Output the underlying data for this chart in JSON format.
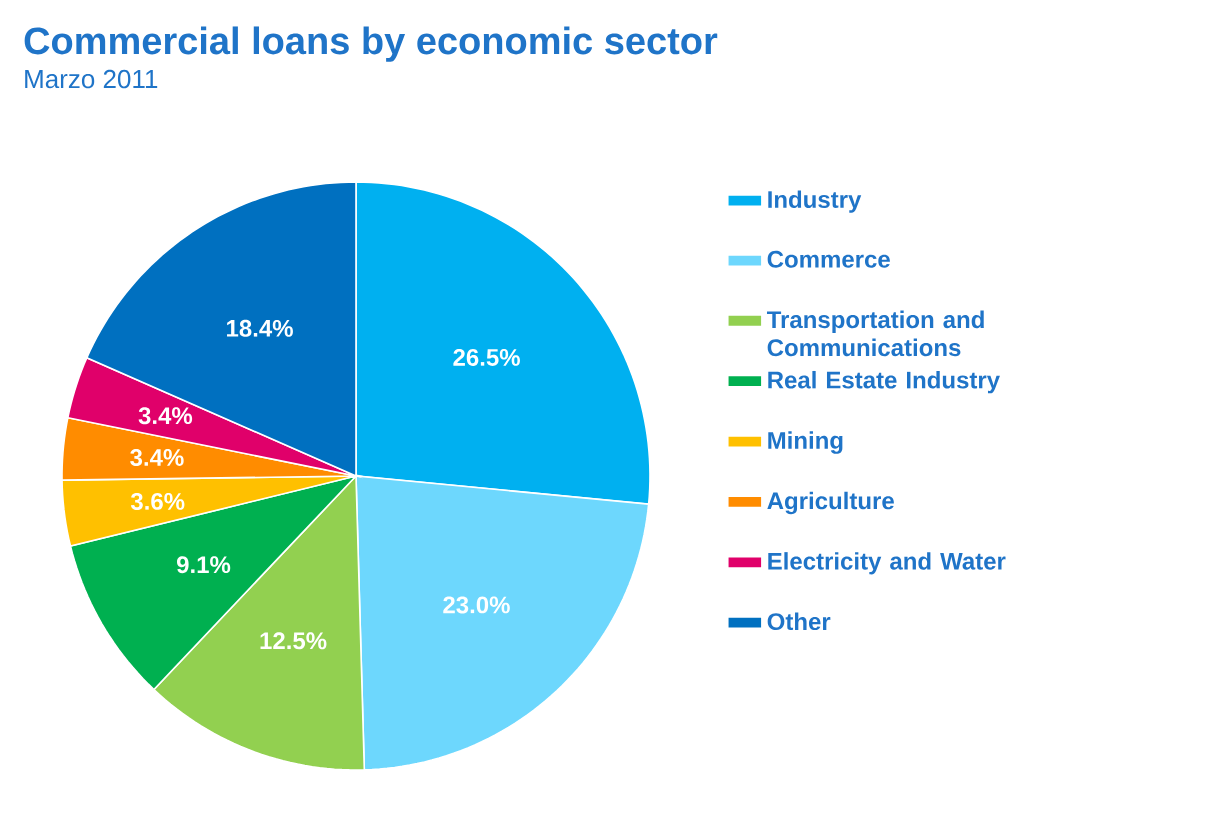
{
  "chart_data": {
    "type": "pie",
    "title": "Commercial loans by economic sector",
    "subtitle": "Marzo 2011",
    "categories": [
      "Industry",
      "Commerce",
      "Transportation and Communications",
      "Real Estate Industry",
      "Mining",
      "Agriculture",
      "Electricity and Water",
      "Other"
    ],
    "values": [
      26.5,
      23.0,
      12.5,
      9.1,
      3.6,
      3.4,
      3.4,
      18.4
    ],
    "colors": [
      "#00b0f0",
      "#6dd7fd",
      "#92d050",
      "#00b050",
      "#ffc000",
      "#ff8c00",
      "#e0006a",
      "#0070c0"
    ],
    "value_labels": [
      "26.5%",
      "23.0%",
      "12.5%",
      "9.1%",
      "3.6%",
      "3.4%",
      "3.4%",
      "18.4%"
    ],
    "legend": "right"
  }
}
